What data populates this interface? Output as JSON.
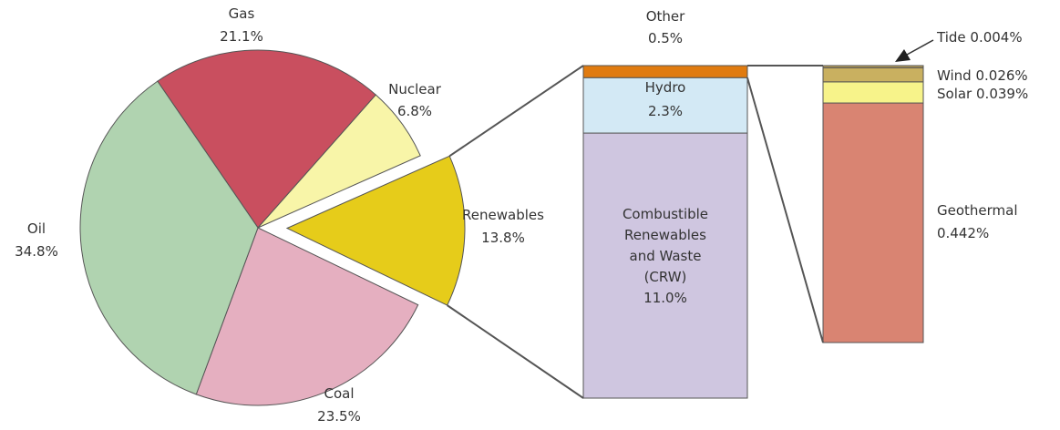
{
  "chart_data": [
    {
      "type": "pie",
      "categories": [
        "Gas",
        "Nuclear",
        "Renewables",
        "Coal",
        "Oil"
      ],
      "values": [
        21.1,
        6.8,
        13.8,
        23.5,
        34.8
      ],
      "value_labels": [
        "21.1%",
        "6.8%",
        "13.8%",
        "23.5%",
        "34.8%"
      ],
      "colors": [
        "#c94f5f",
        "#f8f5a8",
        "#e6cc1a",
        "#e5afc0",
        "#b0d3b0"
      ],
      "exploded": "Renewables"
    },
    {
      "type": "stacked-bar",
      "categories": [
        "Combustible\nRenewables\nand Waste\n(CRW)",
        "Hydro",
        "Other"
      ],
      "values": [
        11.0,
        2.3,
        0.5
      ],
      "value_labels": [
        "11.0%",
        "2.3%",
        "0.5%"
      ],
      "colors": [
        "#cfc6e0",
        "#d3e9f5",
        "#e07b10"
      ]
    },
    {
      "type": "stacked-bar",
      "categories": [
        "Geothermal",
        "Solar",
        "Wind",
        "Tide"
      ],
      "values": [
        0.442,
        0.039,
        0.026,
        0.004
      ],
      "value_labels": [
        "0.442%",
        "0.039%",
        "0.026%",
        "0.004%"
      ],
      "colors": [
        "#d98472",
        "#f7f38a",
        "#c9b060",
        "#b39a58"
      ]
    }
  ]
}
